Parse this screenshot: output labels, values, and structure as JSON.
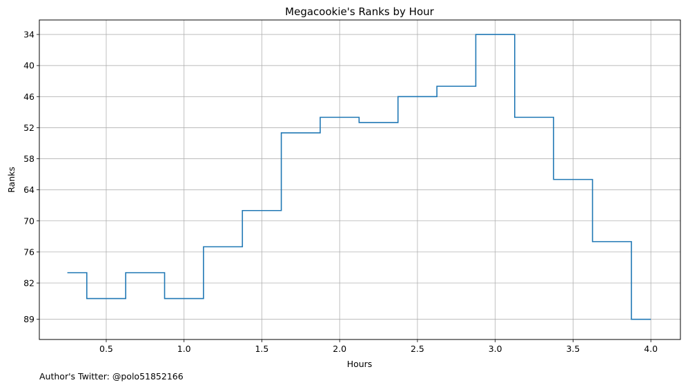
{
  "caption": "Author's Twitter: @polo51852166",
  "chart_data": {
    "type": "line",
    "step": "mid",
    "title": "Megacookie's Ranks by Hour",
    "xlabel": "Hours",
    "ylabel": "Ranks",
    "y_inverted": true,
    "xlim": [
      0.07,
      4.19
    ],
    "ylim": [
      92.9,
      31.2
    ],
    "x_ticks": [
      0.5,
      1.0,
      1.5,
      2.0,
      2.5,
      3.0,
      3.5,
      4.0
    ],
    "x_tick_labels": [
      "0.5",
      "1.0",
      "1.5",
      "2.0",
      "2.5",
      "3.0",
      "3.5",
      "4.0"
    ],
    "y_ticks": [
      34,
      40,
      46,
      52,
      58,
      64,
      70,
      76,
      82,
      89
    ],
    "y_tick_labels": [
      "34",
      "40",
      "46",
      "52",
      "58",
      "64",
      "70",
      "76",
      "82",
      "89"
    ],
    "grid": true,
    "line_color": "#1f77b4",
    "series": [
      {
        "x": [
          0.25,
          0.5,
          0.75,
          1.0,
          1.25,
          1.5,
          1.75,
          2.0,
          2.25,
          2.5,
          2.75,
          3.0,
          3.25,
          3.5,
          3.75,
          4.0
        ],
        "values": [
          80,
          85,
          80,
          85,
          75,
          68,
          53,
          50,
          51,
          46,
          44,
          34,
          50,
          62,
          74,
          89
        ]
      }
    ]
  }
}
